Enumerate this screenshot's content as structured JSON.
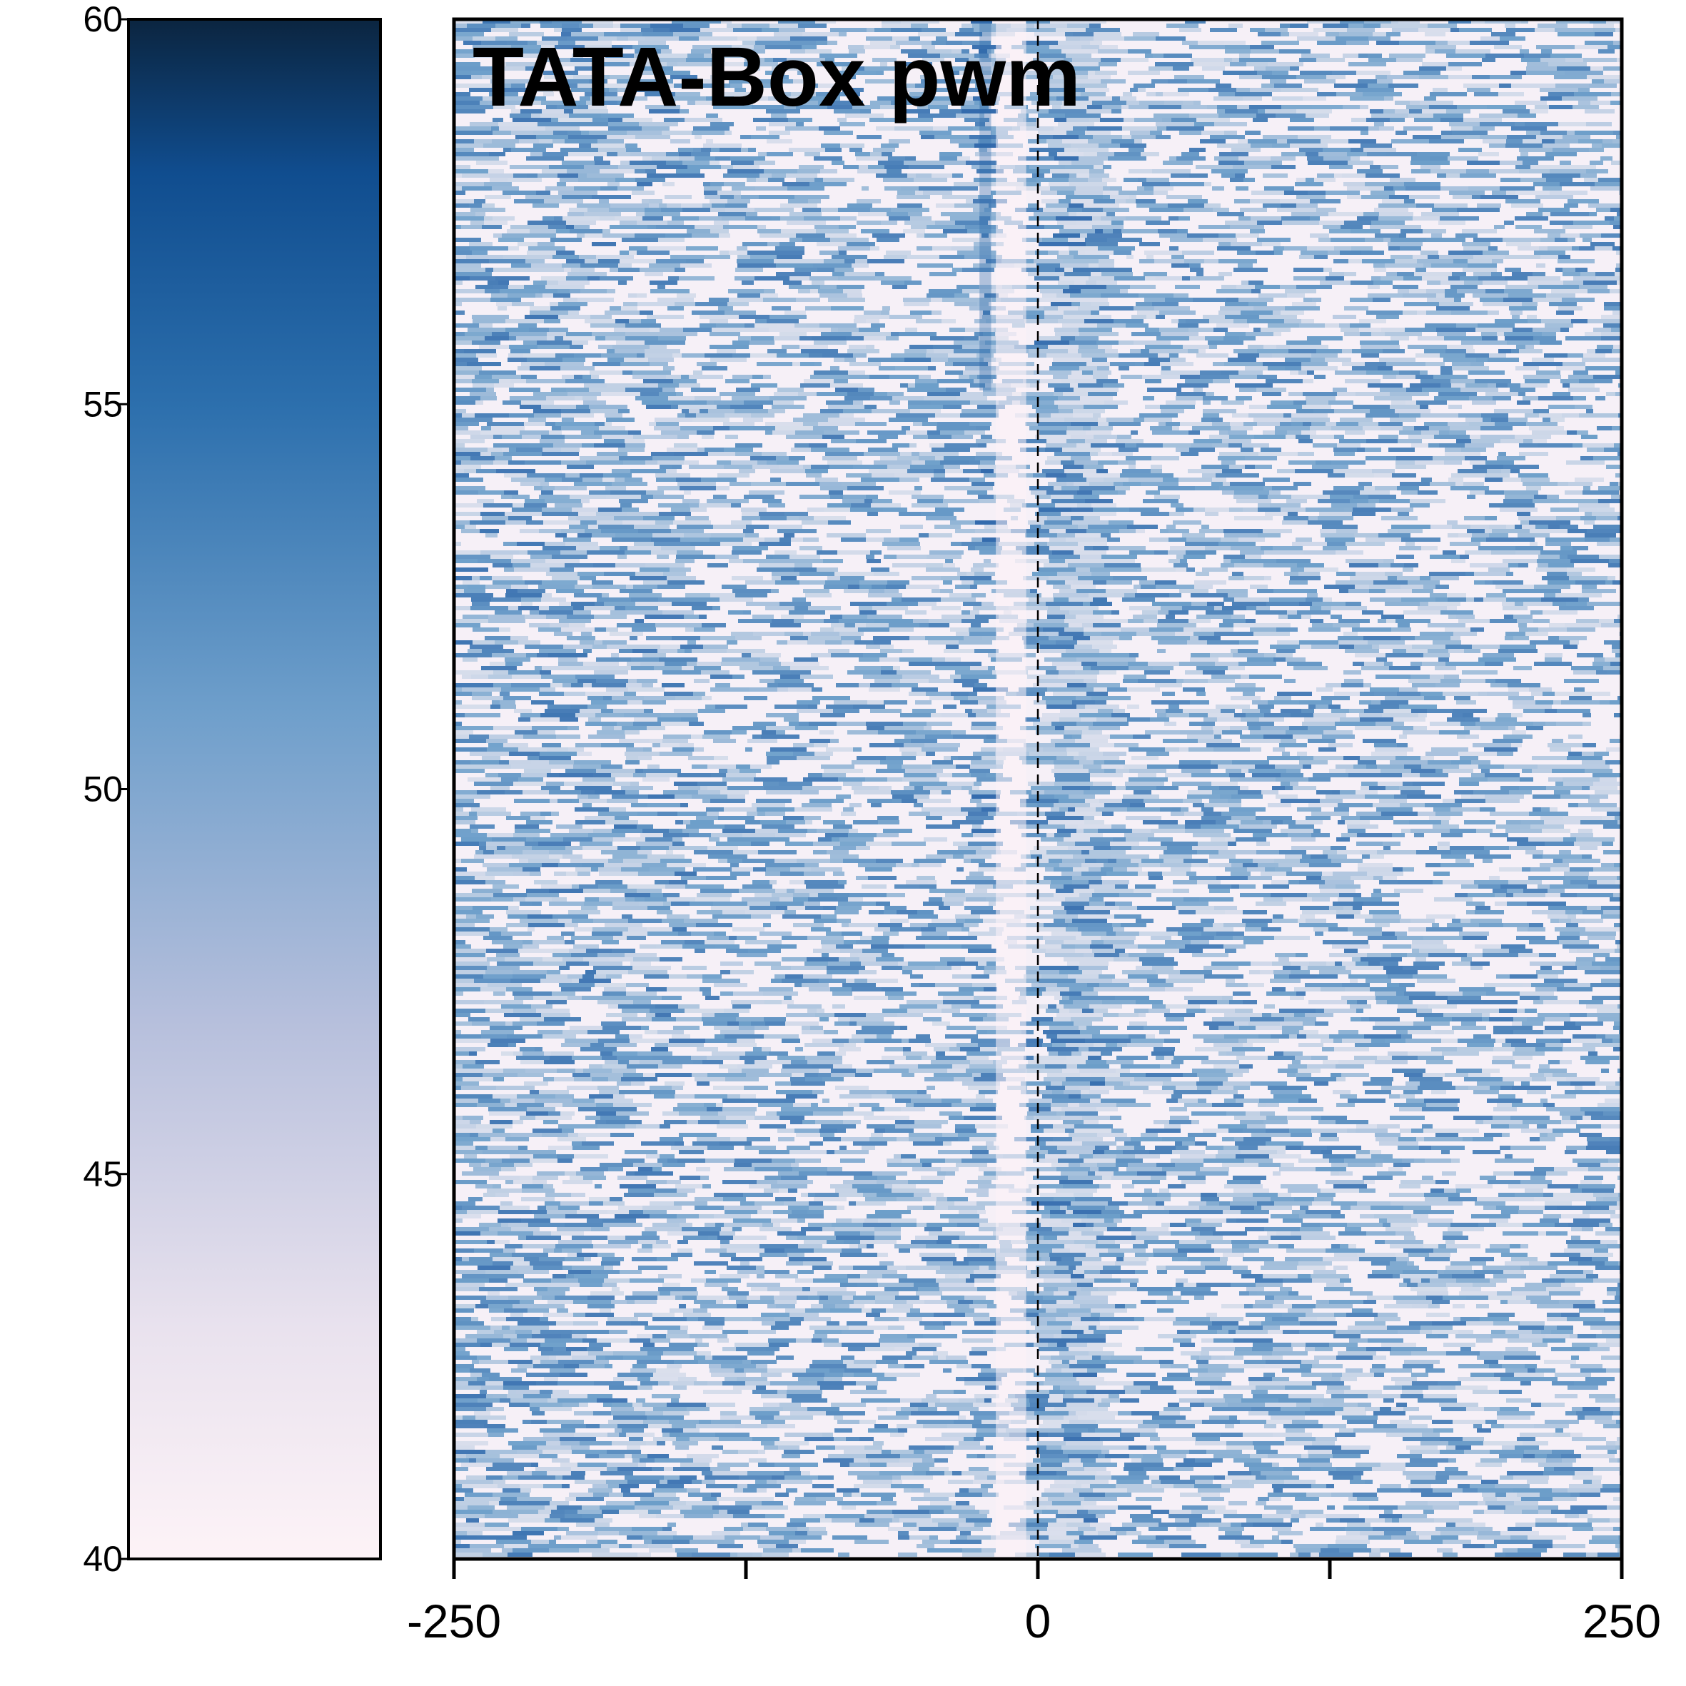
{
  "chart_data": {
    "type": "heatmap",
    "title": "TATA-Box pwm",
    "xlabel": "",
    "ylabel": "",
    "x_ticks": [
      -250,
      -125,
      0,
      125,
      250
    ],
    "x_tick_labels": [
      "-250",
      "",
      "0",
      "",
      "250"
    ],
    "xlim": [
      -250,
      250
    ],
    "reference_line_x": 0,
    "colorbar": {
      "range": [
        40,
        60
      ],
      "ticks": [
        40,
        45,
        50,
        55,
        60
      ],
      "tick_labels": [
        "40",
        "45",
        "50",
        "55",
        "60"
      ],
      "low_color": "#fdf3f7",
      "mid_color": "#5a94c4",
      "high_color": "#0b2540"
    },
    "features": [
      {
        "x_range": [
          -25,
          -20
        ],
        "description": "enriched band near TATA position, strongest in top rows"
      },
      {
        "x_range": [
          -18,
          -5
        ],
        "description": "depleted light band"
      },
      {
        "x_range": [
          5,
          30
        ],
        "description": "moderately enriched region downstream"
      }
    ],
    "background_level": 45
  }
}
